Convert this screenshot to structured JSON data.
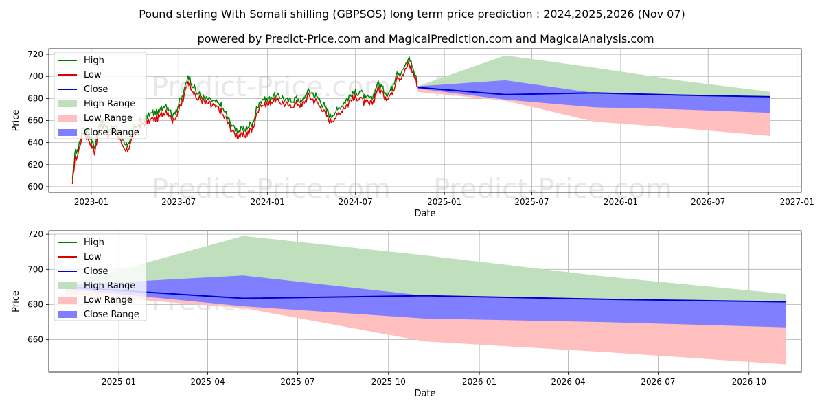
{
  "title": "Pound sterling With Somali shilling (GBPSOS) long term price prediction : 2024,2025,2026 (Nov 07)",
  "subtitle": "powered by Predict-Price.com and MagicalPrediction.com and MagicalAnalysis.com",
  "watermark": "Predict-Price.com",
  "colors": {
    "high": "#008000",
    "low": "#dd0000",
    "close": "#0000cc",
    "high_range": "#c0dfbd",
    "low_range": "#ffbfbf",
    "close_range": "#7f7fff",
    "grid": "#b0b0b0",
    "watermark": "#e8e8e8"
  },
  "chart_data": [
    {
      "id": "top",
      "type": "line",
      "xlabel": "Date",
      "ylabel": "Price",
      "xlim": [
        "2022-10-05",
        "2027-01-10"
      ],
      "ylim": [
        595,
        725
      ],
      "grid": true,
      "legend_position": "top-left",
      "x_ticks": [
        "2023-01",
        "2023-07",
        "2024-01",
        "2024-07",
        "2025-01",
        "2025-07",
        "2026-01",
        "2026-07",
        "2027-01"
      ],
      "y_ticks": [
        600,
        620,
        640,
        660,
        680,
        700,
        720
      ],
      "legend": [
        "High",
        "Low",
        "Close",
        "High Range",
        "Low Range",
        "Close Range"
      ],
      "history": {
        "dates": [
          "2022-11-23",
          "2022-11-28",
          "2022-12-05",
          "2022-12-15",
          "2022-12-28",
          "2023-01-08",
          "2023-01-20",
          "2023-02-05",
          "2023-02-20",
          "2023-03-05",
          "2023-03-15",
          "2023-03-28",
          "2023-04-15",
          "2023-05-01",
          "2023-05-20",
          "2023-06-05",
          "2023-06-20",
          "2023-07-05",
          "2023-07-12",
          "2023-07-20",
          "2023-08-05",
          "2023-08-25",
          "2023-09-10",
          "2023-09-25",
          "2023-10-05",
          "2023-10-15",
          "2023-10-25",
          "2023-11-05",
          "2023-11-18",
          "2023-12-01",
          "2023-12-15",
          "2024-01-01",
          "2024-01-15",
          "2024-02-01",
          "2024-02-15",
          "2024-03-01",
          "2024-03-12",
          "2024-03-25",
          "2024-04-10",
          "2024-04-25",
          "2024-05-10",
          "2024-05-25",
          "2024-06-10",
          "2024-06-25",
          "2024-07-10",
          "2024-07-20",
          "2024-08-05",
          "2024-08-15",
          "2024-08-25",
          "2024-09-05",
          "2024-09-15",
          "2024-09-25",
          "2024-10-02",
          "2024-10-10",
          "2024-10-20",
          "2024-11-01",
          "2024-11-07"
        ],
        "close": [
          602,
          628,
          633,
          652,
          645,
          633,
          660,
          648,
          655,
          640,
          634,
          648,
          658,
          663,
          665,
          673,
          662,
          676,
          683,
          699,
          684,
          678,
          676,
          672,
          665,
          657,
          650,
          648,
          650,
          655,
          676,
          677,
          680,
          679,
          675,
          678,
          675,
          685,
          680,
          672,
          662,
          667,
          676,
          682,
          684,
          678,
          677,
          692,
          687,
          682,
          688,
          703,
          700,
          705,
          715,
          700,
          693
        ],
        "high_offset": 3,
        "low_offset": -3
      },
      "forecast": {
        "dates": [
          "2024-11-07",
          "2025-05-07",
          "2025-11-07",
          "2026-05-07",
          "2026-11-07"
        ],
        "high": [
          691,
          719,
          708,
          696,
          686
        ],
        "low": [
          686,
          678,
          659,
          653,
          646
        ],
        "close": [
          690,
          683.5,
          685,
          683,
          681.5
        ],
        "close_range_high": [
          691,
          696.5,
          685,
          683,
          681.5
        ],
        "close_range_low": [
          689,
          679,
          672,
          670,
          667
        ]
      }
    },
    {
      "id": "bottom",
      "type": "line",
      "xlabel": "Date",
      "ylabel": "Price",
      "xlim": [
        "2024-10-22",
        "2026-11-23"
      ],
      "ylim": [
        641.5,
        722
      ],
      "grid": true,
      "legend_position": "top-left",
      "x_ticks": [
        "2025-01",
        "2025-04",
        "2025-07",
        "2025-10",
        "2026-01",
        "2026-04",
        "2026-07",
        "2026-10"
      ],
      "y_ticks": [
        660,
        680,
        700,
        720
      ],
      "legend": [
        "High",
        "Low",
        "Close",
        "High Range",
        "Low Range",
        "Close Range"
      ],
      "forecast": {
        "dates": [
          "2024-11-07",
          "2025-05-07",
          "2025-11-07",
          "2026-05-07",
          "2026-11-07"
        ],
        "high": [
          691,
          719,
          708,
          696,
          686
        ],
        "low": [
          686,
          678,
          659,
          653,
          646
        ],
        "close": [
          690,
          683.5,
          685,
          683,
          681.5
        ],
        "close_range_high": [
          691,
          696.5,
          685,
          683,
          681.5
        ],
        "close_range_low": [
          689,
          679,
          672,
          670,
          667
        ]
      }
    }
  ]
}
